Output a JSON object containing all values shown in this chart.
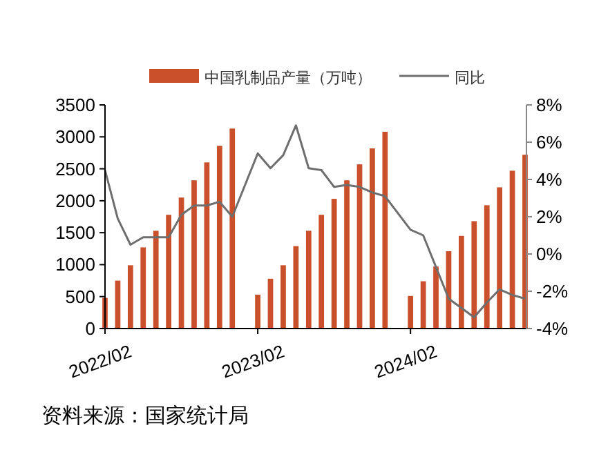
{
  "chart_data": {
    "type": "bar",
    "categories": [
      "2022/02",
      null,
      null,
      null,
      null,
      null,
      null,
      null,
      null,
      null,
      null,
      null,
      "2023/02",
      null,
      null,
      null,
      null,
      null,
      null,
      null,
      null,
      null,
      null,
      null,
      "2024/02",
      null,
      null,
      null,
      null,
      null,
      null,
      null,
      null,
      null
    ],
    "series": [
      {
        "name": "中国乳制品产量（万吨）",
        "color": "#c9502a",
        "values": [
          480,
          750,
          990,
          1270,
          1530,
          1780,
          2050,
          2320,
          2600,
          2860,
          3130,
          null,
          530,
          780,
          990,
          1290,
          1530,
          1780,
          2030,
          2320,
          2570,
          2820,
          3080,
          null,
          510,
          740,
          970,
          1210,
          1450,
          1680,
          1930,
          2210,
          2470,
          2720
        ]
      },
      {
        "name": "同比",
        "type": "line",
        "axis": "y2",
        "color": "#6e6e6e",
        "values": [
          4.5,
          1.9,
          0.5,
          0.9,
          0.9,
          0.9,
          2.1,
          2.6,
          2.6,
          2.8,
          2.0,
          null,
          5.4,
          4.6,
          5.3,
          6.9,
          4.6,
          4.5,
          3.6,
          3.7,
          3.6,
          3.3,
          3.1,
          null,
          1.3,
          1.0,
          -0.7,
          -2.4,
          -2.9,
          -3.4,
          -2.6,
          -1.9,
          -2.2,
          -2.4
        ]
      }
    ],
    "ylim": [
      0,
      3500
    ],
    "yticks": [
      0,
      500,
      1000,
      1500,
      2000,
      2500,
      3000,
      3500
    ],
    "y2lim": [
      -4,
      8
    ],
    "y2ticks": [
      {
        "value": -4,
        "label": "-4%"
      },
      {
        "value": -2,
        "label": "-2%"
      },
      {
        "value": 0,
        "label": "0%"
      },
      {
        "value": 2,
        "label": "2%"
      },
      {
        "value": 4,
        "label": "4%"
      },
      {
        "value": 6,
        "label": "6%"
      },
      {
        "value": 8,
        "label": "8%"
      }
    ],
    "legend": "top",
    "grid": false,
    "annotations": [
      "资料来源：国家统计局"
    ]
  }
}
